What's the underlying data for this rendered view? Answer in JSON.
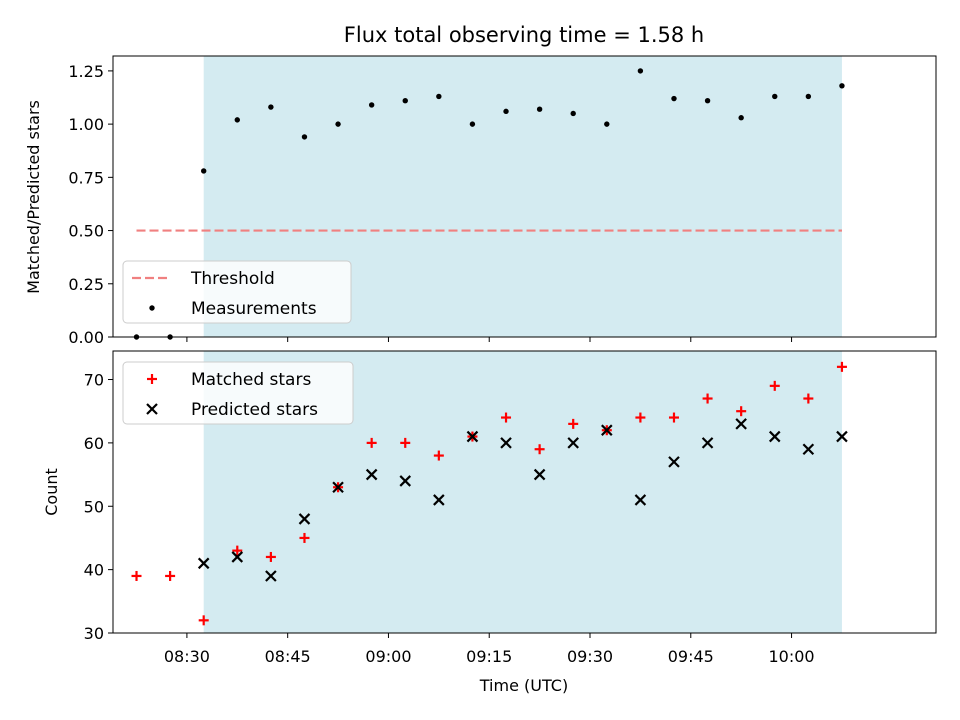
{
  "chart_data": {
    "type": "scatter",
    "title": "Flux total observing time = 1.58 h",
    "xlabel": "Time (UTC)",
    "x_tick_labels": [
      "08:30",
      "08:45",
      "09:00",
      "09:15",
      "09:30",
      "09:45",
      "10:00"
    ],
    "x_tick_minutes": [
      510,
      525,
      540,
      555,
      570,
      585,
      600
    ],
    "xlim_minutes": [
      499,
      621.5
    ],
    "shaded_span_minutes": [
      512.5,
      607.5
    ],
    "shade_color": "#d4ebf1",
    "panels": [
      {
        "name": "ratio",
        "ylabel": "Matched/Predicted stars",
        "ylim": [
          0,
          1.32
        ],
        "yticks": [
          0,
          0.25,
          0.5,
          0.75,
          1.0,
          1.25
        ],
        "ytick_labels": [
          "0.00",
          "0.25",
          "0.50",
          "0.75",
          "1.00",
          "1.25"
        ],
        "threshold": {
          "name": "Threshold",
          "value": 0.5,
          "x_range_minutes": [
            502.5,
            607.5
          ],
          "color": "#f08080"
        },
        "series": [
          {
            "name": "Measurements",
            "marker": "dot",
            "color": "#000000",
            "x_minutes": [
              502.5,
              507.5,
              512.5,
              517.5,
              522.5,
              527.5,
              532.5,
              537.5,
              542.5,
              547.5,
              552.5,
              557.5,
              562.5,
              567.5,
              572.5,
              577.5,
              582.5,
              587.5,
              592.5,
              597.5,
              602.5,
              607.5
            ],
            "values": [
              0.0,
              0.0,
              0.78,
              1.02,
              1.08,
              0.94,
              1.0,
              1.09,
              1.11,
              1.13,
              1.0,
              1.06,
              1.07,
              1.05,
              1.0,
              1.25,
              1.12,
              1.11,
              1.03,
              1.13,
              1.13,
              1.18
            ]
          }
        ],
        "legend": [
          {
            "name": "Threshold",
            "symbol": "dash"
          },
          {
            "name": "Measurements",
            "symbol": "dot"
          }
        ]
      },
      {
        "name": "count",
        "ylabel": "Count",
        "ylim": [
          30,
          74.5
        ],
        "yticks": [
          30,
          40,
          50,
          60,
          70
        ],
        "ytick_labels": [
          "30",
          "40",
          "50",
          "60",
          "70"
        ],
        "series": [
          {
            "name": "Matched stars",
            "marker": "plus",
            "color": "#ff0000",
            "x_minutes": [
              502.5,
              507.5,
              512.5,
              517.5,
              522.5,
              527.5,
              532.5,
              537.5,
              542.5,
              547.5,
              552.5,
              557.5,
              562.5,
              567.5,
              572.5,
              577.5,
              582.5,
              587.5,
              592.5,
              597.5,
              602.5,
              607.5
            ],
            "values": [
              39,
              39,
              32,
              43,
              42,
              45,
              53,
              60,
              60,
              58,
              61,
              64,
              59,
              63,
              62,
              64,
              64,
              67,
              65,
              69,
              67,
              72
            ]
          },
          {
            "name": "Predicted stars",
            "marker": "x",
            "color": "#000000",
            "x_minutes": [
              512.5,
              517.5,
              522.5,
              527.5,
              532.5,
              537.5,
              542.5,
              547.5,
              552.5,
              557.5,
              562.5,
              567.5,
              572.5,
              577.5,
              582.5,
              587.5,
              592.5,
              597.5,
              602.5,
              607.5
            ],
            "values": [
              41,
              42,
              39,
              48,
              53,
              55,
              54,
              51,
              61,
              60,
              55,
              60,
              62,
              51,
              57,
              60,
              63,
              61,
              59,
              61
            ]
          }
        ],
        "legend": [
          {
            "name": "Matched stars",
            "symbol": "plus"
          },
          {
            "name": "Predicted stars",
            "symbol": "x"
          }
        ]
      }
    ]
  }
}
